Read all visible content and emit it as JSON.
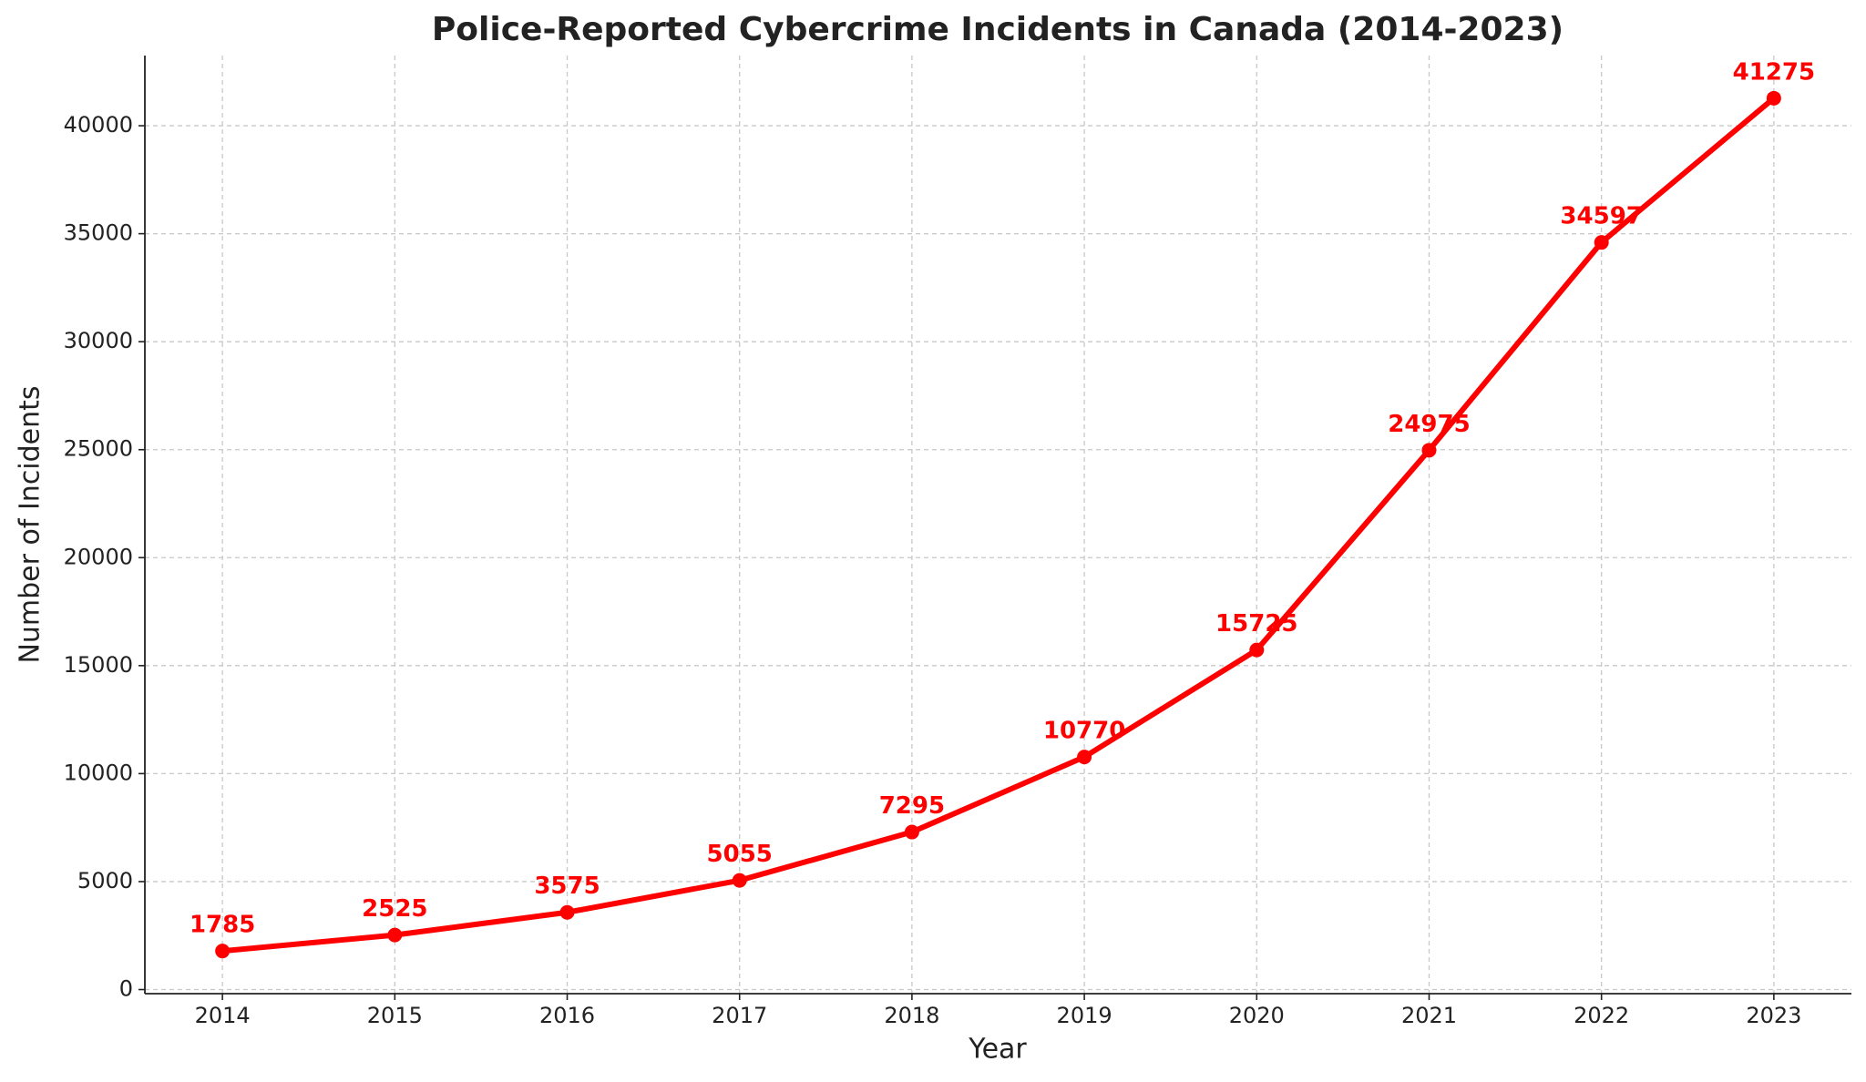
{
  "chart_data": {
    "type": "line",
    "title": "Police-Reported Cybercrime Incidents in Canada (2014-2023)",
    "x_label": "Year",
    "y_label": "Number of Incidents",
    "x": [
      2014,
      2015,
      2016,
      2017,
      2018,
      2019,
      2020,
      2021,
      2022,
      2023
    ],
    "values": [
      1785,
      2525,
      3575,
      5055,
      7295,
      10770,
      15725,
      24975,
      34597,
      41275
    ],
    "color": "#ff0000",
    "xlim": [
      2013.55,
      2023.45
    ],
    "xticks": [
      2014,
      2015,
      2016,
      2017,
      2018,
      2019,
      2020,
      2021,
      2022,
      2023
    ],
    "ylim": [
      -189.5,
      43249.5
    ],
    "yticks": [
      0,
      5000,
      10000,
      15000,
      20000,
      25000,
      30000,
      35000,
      40000
    ],
    "grid": true
  }
}
